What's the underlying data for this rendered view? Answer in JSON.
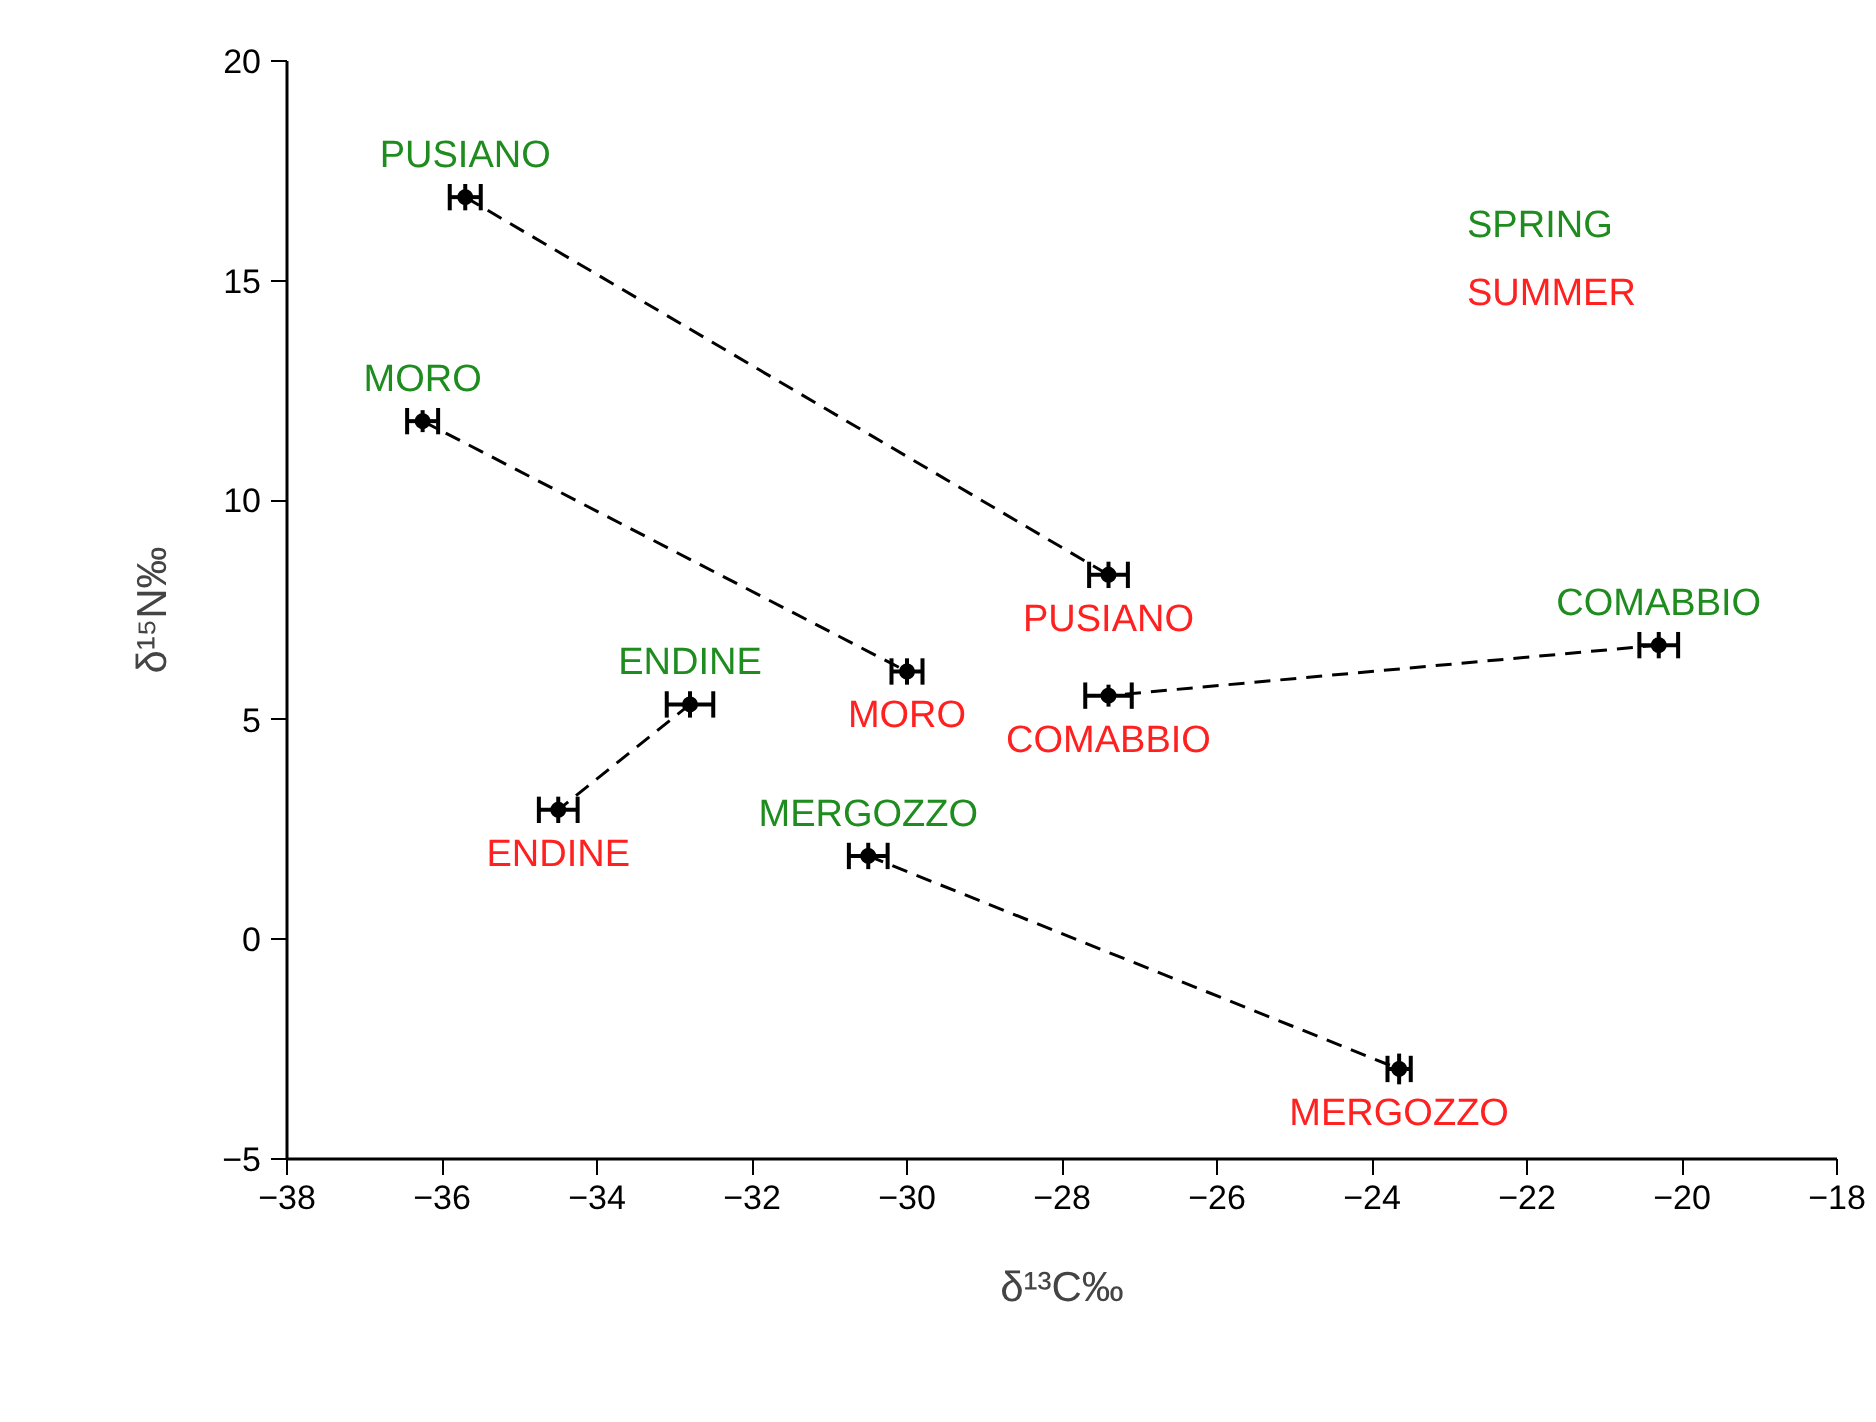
{
  "chart_data": {
    "type": "scatter",
    "xlabel": "δ¹³C‰",
    "ylabel": "δ¹⁵N‰",
    "xlim": [
      -38,
      -18
    ],
    "xticks": [
      -38,
      -36,
      -34,
      -32,
      -30,
      -28,
      -26,
      -24,
      -22,
      -20,
      -18
    ],
    "ylim": [
      -5,
      20
    ],
    "yticks": [
      -5,
      0,
      5,
      10,
      15,
      20
    ],
    "grid": false,
    "annotations": [
      "SPRING",
      "SUMMER"
    ],
    "series": [
      {
        "marker": "circle",
        "color": "#000000",
        "x": [
          -35.7,
          -36.25,
          -32.8,
          -30.5,
          -20.3
        ],
        "values": [
          16.9,
          11.8,
          5.35,
          1.9,
          6.7
        ],
        "errors": [
          0.3,
          0.25,
          0.3,
          0.3,
          0.3
        ],
        "xerrors": [
          0.2,
          0.2,
          0.3,
          0.25,
          0.25
        ],
        "value_labels": [
          "PUSIANO",
          "MORO",
          "ENDINE",
          "MERGOZZO",
          "COMABBIO"
        ]
      },
      {
        "marker": "circle",
        "color": "#000000",
        "x": [
          -27.4,
          -30.0,
          -34.5,
          -23.65,
          -27.4
        ],
        "values": [
          8.3,
          6.1,
          2.95,
          -2.95,
          5.55
        ],
        "errors": [
          0.3,
          0.3,
          0.3,
          0.35,
          0.25
        ],
        "xerrors": [
          0.25,
          0.2,
          0.25,
          0.15,
          0.3
        ],
        "value_labels": [
          "PUSIANO",
          "MORO",
          "ENDINE",
          "MERGOZZO",
          "COMABBIO"
        ]
      },
      {
        "type": "line",
        "line_style": "dashed",
        "color": "#000000",
        "x": [
          -35.7,
          -27.4
        ],
        "values": [
          16.9,
          8.3
        ]
      },
      {
        "type": "line",
        "line_style": "dashed",
        "color": "#000000",
        "x": [
          -36.25,
          -30.0
        ],
        "values": [
          11.8,
          6.1
        ]
      },
      {
        "type": "line",
        "line_style": "dashed",
        "color": "#000000",
        "x": [
          -32.8,
          -34.5
        ],
        "values": [
          5.35,
          2.95
        ]
      },
      {
        "type": "line",
        "line_style": "dashed",
        "color": "#000000",
        "x": [
          -30.5,
          -23.65
        ],
        "values": [
          1.9,
          -2.95
        ]
      },
      {
        "type": "line",
        "line_style": "dashed",
        "color": "#000000",
        "x": [
          -20.3,
          -27.4
        ],
        "values": [
          6.7,
          5.55
        ]
      }
    ]
  }
}
